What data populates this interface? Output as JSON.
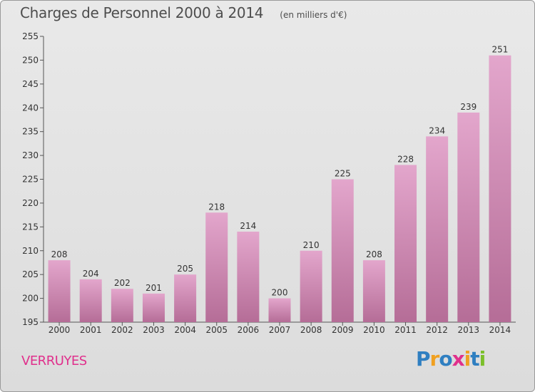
{
  "chart_data": {
    "type": "bar",
    "title": "Charges de Personnel 2000 à 2014",
    "subtitle": "(en milliers d'€)",
    "categories": [
      "2000",
      "2001",
      "2002",
      "2003",
      "2004",
      "2005",
      "2006",
      "2007",
      "2008",
      "2009",
      "2010",
      "2011",
      "2012",
      "2013",
      "2014"
    ],
    "values": [
      208,
      204,
      202,
      201,
      205,
      218,
      214,
      200,
      210,
      225,
      208,
      228,
      234,
      239,
      251
    ],
    "ylim": [
      195,
      255
    ],
    "yticks": [
      195,
      200,
      205,
      210,
      215,
      220,
      225,
      230,
      235,
      240,
      245,
      250,
      255
    ],
    "grid": false,
    "legend": "none"
  },
  "labels": {
    "town": "VERRUYES",
    "logo": "Proxiti"
  },
  "colors": {
    "bar_top": "#e3a6cc",
    "bar_bottom": "#b56d97",
    "town": "#e0308c",
    "logo": [
      "#2f7fc1",
      "#f0a020",
      "#2f7fc1",
      "#e0308c",
      "#f0a020",
      "#2f7fc1",
      "#7bbf2a"
    ]
  }
}
